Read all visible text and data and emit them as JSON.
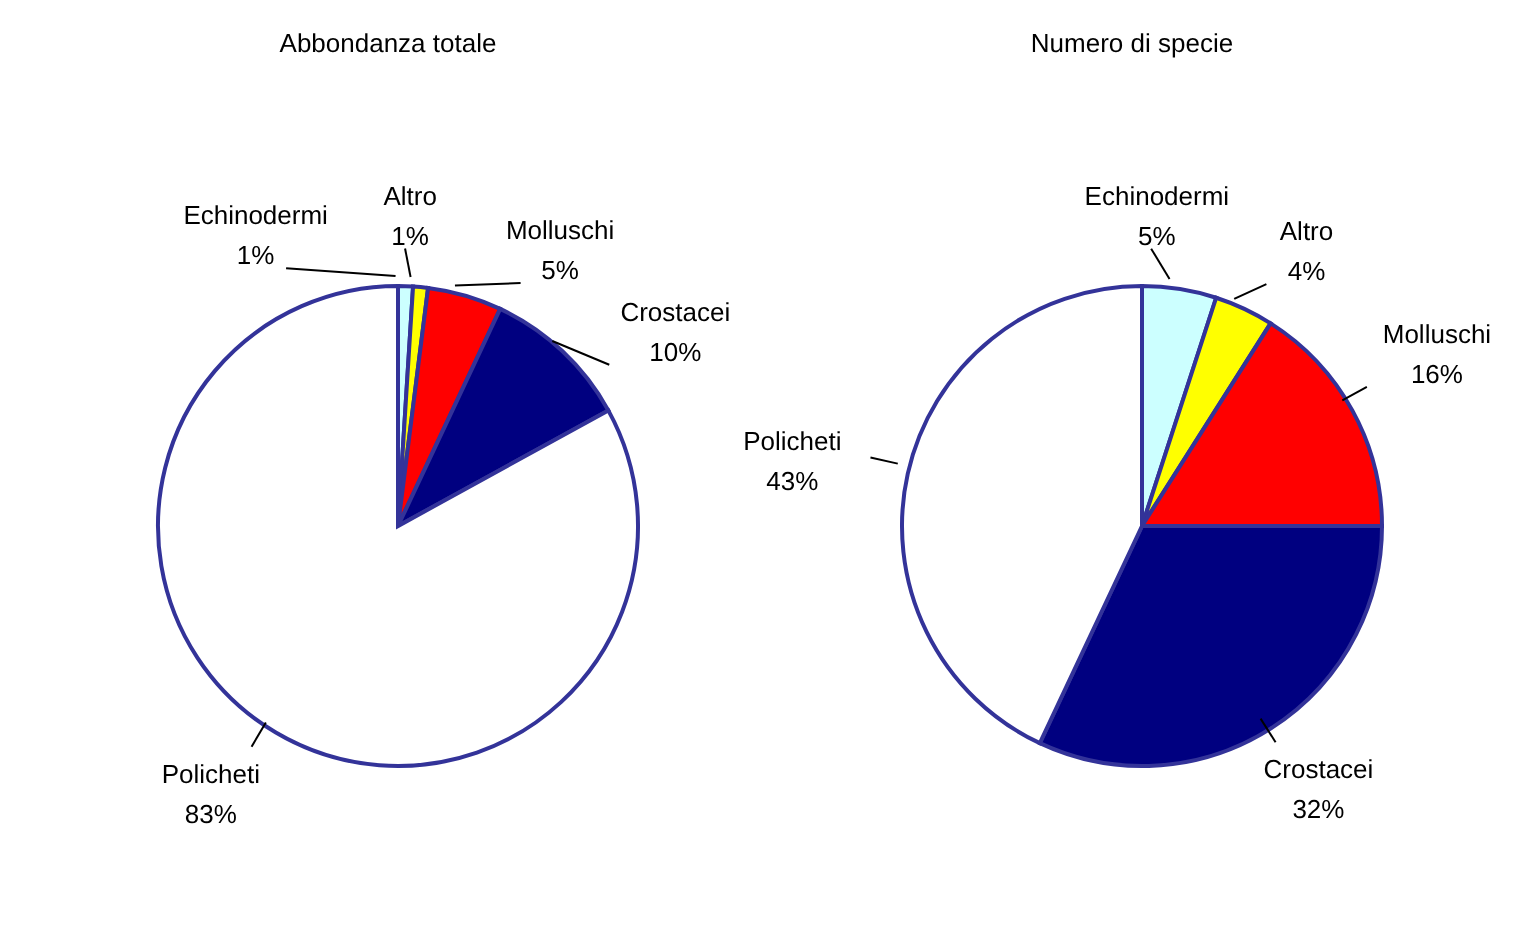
{
  "chart_data": [
    {
      "type": "pie",
      "title": "Abbondanza totale",
      "categories": [
        "Echinodermi",
        "Altro",
        "Molluschi",
        "Crostacei",
        "Policheti"
      ],
      "values": [
        1,
        1,
        5,
        10,
        83
      ],
      "colors": [
        "#ccffff",
        "#ffff00",
        "#ff0000",
        "#000080",
        "#ffffff"
      ],
      "value_labels": [
        "1%",
        "1%",
        "5%",
        "10%",
        "83%"
      ]
    },
    {
      "type": "pie",
      "title": "Numero di specie",
      "categories": [
        "Echinodermi",
        "Altro",
        "Molluschi",
        "Crostacei",
        "Policheti"
      ],
      "values": [
        5,
        4,
        16,
        32,
        43
      ],
      "colors": [
        "#ccffff",
        "#ffff00",
        "#ff0000",
        "#000080",
        "#ffffff"
      ],
      "value_labels": [
        "5%",
        "4%",
        "16%",
        "32%",
        "43%"
      ]
    }
  ]
}
